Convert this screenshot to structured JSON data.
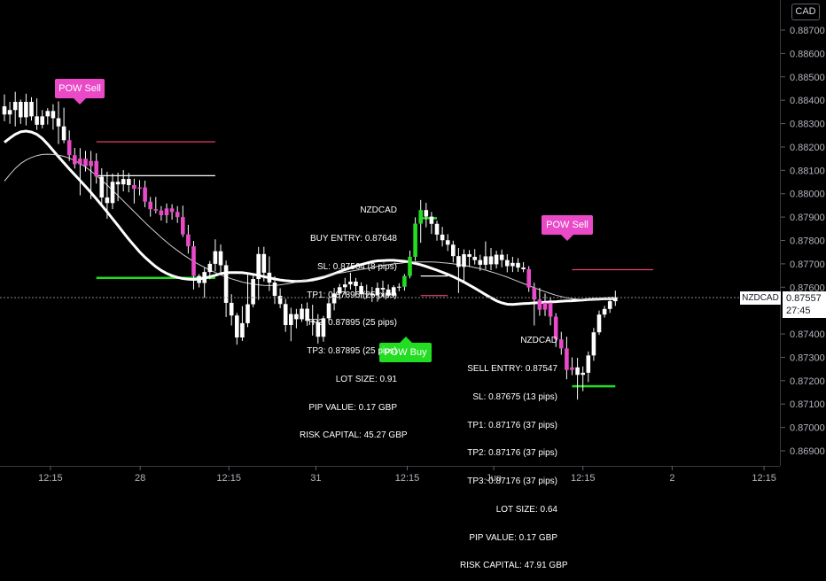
{
  "header": {
    "currency": "CAD"
  },
  "price_marker": {
    "symbol": "NZDCAD",
    "price": "0.87557",
    "countdown": "27:45",
    "color": "#ffffff"
  },
  "colors": {
    "bull": "#ffffff",
    "bear": "#ffffff",
    "signal_bar": "#ea49c7",
    "buy_signal": "#22dd22",
    "background": "#000000"
  },
  "signals": {
    "sell1": {
      "label": "POW Sell",
      "color": "#ea49c7"
    },
    "sell2": {
      "label": "POW Sell",
      "color": "#ea49c7"
    },
    "buy1": {
      "label": "POW Buy",
      "color": "#22dd22"
    }
  },
  "buy_info": {
    "lines": [
      "NZDCAD",
      "BUY ENTRY: 0.87648",
      "SL: 0.87564 (8 pips)",
      "TP1: 0.87895 (25 pips)",
      "TP2: 0.87895 (25 pips)",
      "TP3: 0.87895 (25 pips)",
      "LOT SIZE: 0.91",
      "PIP VALUE: 0.17 GBP",
      "RISK CAPITAL: 45.27 GBP"
    ]
  },
  "sell_info": {
    "lines": [
      "NZDCAD",
      "SELL ENTRY: 0.87547",
      "SL: 0.87675 (13 pips)",
      "TP1: 0.87176 (37 pips)",
      "TP2: 0.87176 (37 pips)",
      "TP3: 0.87176 (37 pips)",
      "LOT SIZE: 0.64",
      "PIP VALUE: 0.17 GBP",
      "RISK CAPITAL: 47.91 GBP"
    ]
  },
  "chart_data": {
    "type": "candlestick",
    "symbol": "NZDCAD",
    "ylim": [
      0.8685,
      0.8889
    ],
    "y_ticks": [
      "0.88700",
      "0.88600",
      "0.88500",
      "0.88400",
      "0.88300",
      "0.88200",
      "0.88100",
      "0.88000",
      "0.87900",
      "0.87800",
      "0.87700",
      "0.87600",
      "0.87400",
      "0.87300",
      "0.87200",
      "0.87100",
      "0.87000",
      "0.86900"
    ],
    "x_ticks": [
      "12:15",
      "28",
      "12:15",
      "31",
      "12:15",
      "Jun",
      "12:15",
      "2",
      "12:15"
    ],
    "candles": [
      {
        "o": 0.88374,
        "h": 0.88425,
        "l": 0.8831,
        "c": 0.88339
      },
      {
        "o": 0.88339,
        "h": 0.88393,
        "l": 0.88299,
        "c": 0.88358
      },
      {
        "o": 0.88358,
        "h": 0.88436,
        "l": 0.88288,
        "c": 0.88393
      },
      {
        "o": 0.88393,
        "h": 0.88403,
        "l": 0.88299,
        "c": 0.88327
      },
      {
        "o": 0.88327,
        "h": 0.88428,
        "l": 0.88292,
        "c": 0.88393
      },
      {
        "o": 0.88393,
        "h": 0.88413,
        "l": 0.88313,
        "c": 0.88331
      },
      {
        "o": 0.88331,
        "h": 0.88408,
        "l": 0.88273,
        "c": 0.88295
      },
      {
        "o": 0.88295,
        "h": 0.88358,
        "l": 0.8828,
        "c": 0.88331
      },
      {
        "o": 0.88331,
        "h": 0.88366,
        "l": 0.88296,
        "c": 0.88354
      },
      {
        "o": 0.88354,
        "h": 0.88383,
        "l": 0.88274,
        "c": 0.88323
      },
      {
        "o": 0.88323,
        "h": 0.88395,
        "l": 0.88212,
        "c": 0.88288
      },
      {
        "o": 0.88288,
        "h": 0.88368,
        "l": 0.88216,
        "c": 0.88229
      },
      {
        "o": 0.88229,
        "h": 0.88271,
        "l": 0.8814,
        "c": 0.88165
      },
      {
        "o": 0.88165,
        "h": 0.88196,
        "l": 0.88108,
        "c": 0.88126
      },
      {
        "o": 0.88126,
        "h": 0.88195,
        "l": 0.87993,
        "c": 0.8815
      },
      {
        "o": 0.8815,
        "h": 0.88183,
        "l": 0.88095,
        "c": 0.88118
      },
      {
        "o": 0.88118,
        "h": 0.88183,
        "l": 0.87977,
        "c": 0.8814
      },
      {
        "o": 0.8814,
        "h": 0.88173,
        "l": 0.88043,
        "c": 0.88073
      },
      {
        "o": 0.88073,
        "h": 0.88109,
        "l": 0.87954,
        "c": 0.87984
      },
      {
        "o": 0.87984,
        "h": 0.88094,
        "l": 0.87893,
        "c": 0.8796
      },
      {
        "o": 0.8796,
        "h": 0.88086,
        "l": 0.87934,
        "c": 0.88051
      },
      {
        "o": 0.88051,
        "h": 0.8809,
        "l": 0.87968,
        "c": 0.8804
      },
      {
        "o": 0.8804,
        "h": 0.88101,
        "l": 0.8801,
        "c": 0.88063
      },
      {
        "o": 0.88063,
        "h": 0.88089,
        "l": 0.88006,
        "c": 0.88037
      },
      {
        "o": 0.88037,
        "h": 0.88064,
        "l": 0.87958,
        "c": 0.88021
      },
      {
        "o": 0.88021,
        "h": 0.88058,
        "l": 0.87993,
        "c": 0.88027
      },
      {
        "o": 0.88027,
        "h": 0.88056,
        "l": 0.87942,
        "c": 0.87966
      },
      {
        "o": 0.87966,
        "h": 0.87986,
        "l": 0.87902,
        "c": 0.87934
      },
      {
        "o": 0.87934,
        "h": 0.87986,
        "l": 0.87916,
        "c": 0.87928
      },
      {
        "o": 0.87928,
        "h": 0.87947,
        "l": 0.87885,
        "c": 0.87908
      },
      {
        "o": 0.87908,
        "h": 0.87958,
        "l": 0.87874,
        "c": 0.87937
      },
      {
        "o": 0.87937,
        "h": 0.87955,
        "l": 0.87889,
        "c": 0.87922
      },
      {
        "o": 0.87922,
        "h": 0.87947,
        "l": 0.87875,
        "c": 0.879
      },
      {
        "o": 0.879,
        "h": 0.87949,
        "l": 0.87815,
        "c": 0.87826
      },
      {
        "o": 0.87826,
        "h": 0.87867,
        "l": 0.87744,
        "c": 0.87775
      },
      {
        "o": 0.87775,
        "h": 0.87798,
        "l": 0.8759,
        "c": 0.87648
      },
      {
        "o": 0.87648,
        "h": 0.87656,
        "l": 0.87599,
        "c": 0.87618
      },
      {
        "o": 0.87618,
        "h": 0.87684,
        "l": 0.87555,
        "c": 0.87665
      },
      {
        "o": 0.87665,
        "h": 0.87712,
        "l": 0.87634,
        "c": 0.877
      },
      {
        "o": 0.877,
        "h": 0.87805,
        "l": 0.87668,
        "c": 0.87754
      },
      {
        "o": 0.87754,
        "h": 0.87783,
        "l": 0.87661,
        "c": 0.87694
      },
      {
        "o": 0.87694,
        "h": 0.87714,
        "l": 0.87472,
        "c": 0.87533
      },
      {
        "o": 0.87533,
        "h": 0.8757,
        "l": 0.87436,
        "c": 0.87479
      },
      {
        "o": 0.87479,
        "h": 0.8749,
        "l": 0.87354,
        "c": 0.87385
      },
      {
        "o": 0.87385,
        "h": 0.87519,
        "l": 0.8737,
        "c": 0.87446
      },
      {
        "o": 0.87446,
        "h": 0.87656,
        "l": 0.87429,
        "c": 0.87527
      },
      {
        "o": 0.87527,
        "h": 0.87656,
        "l": 0.87514,
        "c": 0.87635
      },
      {
        "o": 0.87635,
        "h": 0.87772,
        "l": 0.87546,
        "c": 0.87742
      },
      {
        "o": 0.87742,
        "h": 0.87773,
        "l": 0.87624,
        "c": 0.87662
      },
      {
        "o": 0.87662,
        "h": 0.87732,
        "l": 0.87584,
        "c": 0.8762
      },
      {
        "o": 0.8762,
        "h": 0.87647,
        "l": 0.87528,
        "c": 0.87563
      },
      {
        "o": 0.87563,
        "h": 0.87595,
        "l": 0.8751,
        "c": 0.87528
      },
      {
        "o": 0.87528,
        "h": 0.8755,
        "l": 0.87409,
        "c": 0.87438
      },
      {
        "o": 0.87438,
        "h": 0.87512,
        "l": 0.87369,
        "c": 0.87485
      },
      {
        "o": 0.87485,
        "h": 0.87507,
        "l": 0.87424,
        "c": 0.87463
      },
      {
        "o": 0.87463,
        "h": 0.87529,
        "l": 0.87452,
        "c": 0.87508
      },
      {
        "o": 0.87508,
        "h": 0.87535,
        "l": 0.87435,
        "c": 0.87456
      },
      {
        "o": 0.87456,
        "h": 0.87525,
        "l": 0.87393,
        "c": 0.87451
      },
      {
        "o": 0.87451,
        "h": 0.87485,
        "l": 0.87359,
        "c": 0.87388
      },
      {
        "o": 0.87388,
        "h": 0.87477,
        "l": 0.87367,
        "c": 0.87467
      },
      {
        "o": 0.87467,
        "h": 0.87557,
        "l": 0.87455,
        "c": 0.87531
      },
      {
        "o": 0.87531,
        "h": 0.87597,
        "l": 0.87501,
        "c": 0.87573
      },
      {
        "o": 0.87573,
        "h": 0.87614,
        "l": 0.87548,
        "c": 0.876
      },
      {
        "o": 0.876,
        "h": 0.8764,
        "l": 0.87567,
        "c": 0.87612
      },
      {
        "o": 0.87612,
        "h": 0.87662,
        "l": 0.8759,
        "c": 0.87624
      },
      {
        "o": 0.87624,
        "h": 0.8764,
        "l": 0.87563,
        "c": 0.87605
      },
      {
        "o": 0.87605,
        "h": 0.87621,
        "l": 0.87553,
        "c": 0.8757
      },
      {
        "o": 0.8757,
        "h": 0.87611,
        "l": 0.87551,
        "c": 0.87573
      },
      {
        "o": 0.87573,
        "h": 0.87601,
        "l": 0.87537,
        "c": 0.87565
      },
      {
        "o": 0.87565,
        "h": 0.8762,
        "l": 0.87538,
        "c": 0.87597
      },
      {
        "o": 0.87597,
        "h": 0.87628,
        "l": 0.8756,
        "c": 0.8759
      },
      {
        "o": 0.8759,
        "h": 0.87612,
        "l": 0.87554,
        "c": 0.87564
      },
      {
        "o": 0.87564,
        "h": 0.87608,
        "l": 0.87558,
        "c": 0.876
      },
      {
        "o": 0.876,
        "h": 0.87617,
        "l": 0.87583,
        "c": 0.87602
      },
      {
        "o": 0.87602,
        "h": 0.87656,
        "l": 0.87585,
        "c": 0.87648
      },
      {
        "o": 0.87648,
        "h": 0.87757,
        "l": 0.87638,
        "c": 0.8773
      },
      {
        "o": 0.8773,
        "h": 0.87899,
        "l": 0.87712,
        "c": 0.87872
      },
      {
        "o": 0.87872,
        "h": 0.87973,
        "l": 0.8779,
        "c": 0.8793
      },
      {
        "o": 0.8793,
        "h": 0.87961,
        "l": 0.87856,
        "c": 0.87902
      },
      {
        "o": 0.87902,
        "h": 0.87922,
        "l": 0.87828,
        "c": 0.87871
      },
      {
        "o": 0.87871,
        "h": 0.87885,
        "l": 0.87799,
        "c": 0.87825
      },
      {
        "o": 0.87825,
        "h": 0.87858,
        "l": 0.87774,
        "c": 0.87801
      },
      {
        "o": 0.87801,
        "h": 0.87827,
        "l": 0.87755,
        "c": 0.87782
      },
      {
        "o": 0.87782,
        "h": 0.87799,
        "l": 0.87706,
        "c": 0.87733
      },
      {
        "o": 0.87733,
        "h": 0.87768,
        "l": 0.87575,
        "c": 0.87687
      },
      {
        "o": 0.87687,
        "h": 0.87762,
        "l": 0.87626,
        "c": 0.87741
      },
      {
        "o": 0.87741,
        "h": 0.87759,
        "l": 0.87687,
        "c": 0.8773
      },
      {
        "o": 0.8773,
        "h": 0.87763,
        "l": 0.87697,
        "c": 0.87716
      },
      {
        "o": 0.87716,
        "h": 0.87739,
        "l": 0.8767,
        "c": 0.87696
      },
      {
        "o": 0.87696,
        "h": 0.87796,
        "l": 0.87676,
        "c": 0.87732
      },
      {
        "o": 0.87732,
        "h": 0.87768,
        "l": 0.87673,
        "c": 0.87698
      },
      {
        "o": 0.87698,
        "h": 0.87756,
        "l": 0.8768,
        "c": 0.87739
      },
      {
        "o": 0.87739,
        "h": 0.87761,
        "l": 0.87685,
        "c": 0.87716
      },
      {
        "o": 0.87716,
        "h": 0.87741,
        "l": 0.87664,
        "c": 0.8769
      },
      {
        "o": 0.8769,
        "h": 0.8773,
        "l": 0.87665,
        "c": 0.87704
      },
      {
        "o": 0.87704,
        "h": 0.87724,
        "l": 0.87666,
        "c": 0.87684
      },
      {
        "o": 0.87684,
        "h": 0.87707,
        "l": 0.87664,
        "c": 0.87677
      },
      {
        "o": 0.87677,
        "h": 0.8769,
        "l": 0.8758,
        "c": 0.87599
      },
      {
        "o": 0.87599,
        "h": 0.87619,
        "l": 0.87436,
        "c": 0.87547
      },
      {
        "o": 0.87547,
        "h": 0.87597,
        "l": 0.87478,
        "c": 0.87504
      },
      {
        "o": 0.87504,
        "h": 0.87573,
        "l": 0.87477,
        "c": 0.87534
      },
      {
        "o": 0.87534,
        "h": 0.87558,
        "l": 0.87437,
        "c": 0.87474
      },
      {
        "o": 0.87474,
        "h": 0.87489,
        "l": 0.87344,
        "c": 0.87377
      },
      {
        "o": 0.87377,
        "h": 0.87409,
        "l": 0.87311,
        "c": 0.87338
      },
      {
        "o": 0.87338,
        "h": 0.87388,
        "l": 0.87206,
        "c": 0.87246
      },
      {
        "o": 0.87246,
        "h": 0.873,
        "l": 0.87224,
        "c": 0.87257
      },
      {
        "o": 0.87257,
        "h": 0.87298,
        "l": 0.87119,
        "c": 0.87225
      },
      {
        "o": 0.87225,
        "h": 0.87261,
        "l": 0.87155,
        "c": 0.87234
      },
      {
        "o": 0.87234,
        "h": 0.87325,
        "l": 0.87194,
        "c": 0.87308
      },
      {
        "o": 0.87308,
        "h": 0.87426,
        "l": 0.87285,
        "c": 0.87407
      },
      {
        "o": 0.87407,
        "h": 0.875,
        "l": 0.87396,
        "c": 0.87483
      },
      {
        "o": 0.87483,
        "h": 0.8752,
        "l": 0.8747,
        "c": 0.87507
      },
      {
        "o": 0.87507,
        "h": 0.8755,
        "l": 0.8749,
        "c": 0.8754
      },
      {
        "o": 0.8754,
        "h": 0.87585,
        "l": 0.8752,
        "c": 0.87557
      }
    ],
    "signal_bars": [
      12,
      13,
      14,
      15,
      16,
      17,
      24,
      25,
      26,
      27,
      28,
      29,
      30,
      31,
      32,
      33,
      34,
      35,
      97,
      98,
      99,
      100,
      101,
      102,
      103,
      104,
      105
    ],
    "buy_signal_bars": [
      74,
      75,
      76,
      77
    ],
    "ma_fast": [
      0.8822,
      0.88238,
      0.88254,
      0.88265,
      0.88268,
      0.88264,
      0.88254,
      0.88236,
      0.88212,
      0.88185,
      0.88158,
      0.88132,
      0.88106,
      0.88081,
      0.88056,
      0.88031,
      0.88005,
      0.87978,
      0.8795,
      0.87922,
      0.87893,
      0.87864,
      0.87834,
      0.87805,
      0.87778,
      0.87751,
      0.87728,
      0.87707,
      0.87688,
      0.87672,
      0.87659,
      0.87649,
      0.87642,
      0.87637,
      0.87634,
      0.87633,
      0.87635,
      0.87639,
      0.87645,
      0.87651,
      0.87658,
      0.87662,
      0.87663,
      0.87663,
      0.87662,
      0.87659,
      0.87655,
      0.87651,
      0.87645,
      0.8764,
      0.87635,
      0.87631,
      0.87628,
      0.87626,
      0.87625,
      0.87626,
      0.87628,
      0.87631,
      0.87636,
      0.87642,
      0.8765,
      0.87658,
      0.87667,
      0.87675,
      0.87683,
      0.87691,
      0.87697,
      0.87703,
      0.87709,
      0.87713,
      0.87714,
      0.87715,
      0.87715,
      0.87713,
      0.87711,
      0.87707,
      0.87702,
      0.87696,
      0.87689,
      0.87681,
      0.87673,
      0.87664,
      0.87655,
      0.87645,
      0.87634,
      0.87622,
      0.87609,
      0.87596,
      0.87582,
      0.87568,
      0.87555,
      0.87542,
      0.87533,
      0.87527,
      0.87526,
      0.87528,
      0.8753,
      0.87531,
      0.87533,
      0.87534,
      0.87536,
      0.87537,
      0.87538,
      0.8754,
      0.87541,
      0.87542,
      0.87544,
      0.87545,
      0.87547,
      0.87548,
      0.87549,
      0.87551,
      0.87552,
      0.87553
    ],
    "ma_slow": [
      0.88054,
      0.88082,
      0.88108,
      0.88129,
      0.88144,
      0.88155,
      0.88163,
      0.88168,
      0.88169,
      0.88168,
      0.88165,
      0.8816,
      0.88152,
      0.88142,
      0.88129,
      0.88114,
      0.88097,
      0.88078,
      0.88058,
      0.88037,
      0.88015,
      0.87992,
      0.87969,
      0.87946,
      0.87923,
      0.879,
      0.87877,
      0.87855,
      0.87834,
      0.87813,
      0.87793,
      0.87774,
      0.87757,
      0.8774,
      0.87725,
      0.8771,
      0.87697,
      0.87685,
      0.87673,
      0.87663,
      0.87653,
      0.87644,
      0.87636,
      0.87629,
      0.87622,
      0.87617,
      0.87613,
      0.8761,
      0.87608,
      0.87607,
      0.87608,
      0.8761,
      0.87613,
      0.87617,
      0.87622,
      0.87627,
      0.87632,
      0.87637,
      0.87642,
      0.87647,
      0.87652,
      0.87656,
      0.8766,
      0.87664,
      0.87668,
      0.87672,
      0.87676,
      0.8768,
      0.87684,
      0.87689,
      0.87693,
      0.87696,
      0.877,
      0.87702,
      0.87705,
      0.87707,
      0.87708,
      0.87708,
      0.87708,
      0.87708,
      0.87707,
      0.87705,
      0.87703,
      0.877,
      0.87697,
      0.87693,
      0.87689,
      0.87684,
      0.87679,
      0.87673,
      0.87666,
      0.87659,
      0.87651,
      0.87643,
      0.87634,
      0.87625,
      0.87616,
      0.87607,
      0.87598,
      0.87589,
      0.87581,
      0.87573,
      0.87566,
      0.8756,
      0.87555,
      0.87551,
      0.87549,
      0.87547,
      0.87547,
      0.87547,
      0.87548,
      0.87549,
      0.8755,
      0.87551
    ],
    "levels": [
      {
        "name": "sell1 SL",
        "y": 0.88222,
        "from": 17,
        "to": 39,
        "color": "#e0426b"
      },
      {
        "name": "sell1 entry",
        "y": 0.88077,
        "from": 17,
        "to": 39,
        "color": "#ffffff"
      },
      {
        "name": "sell1 TP",
        "y": 0.8764,
        "from": 17,
        "to": 39,
        "color": "#22dd22"
      },
      {
        "name": "buy1 SL",
        "y": 0.87564,
        "from": 77,
        "to": 82,
        "color": "#e0426b"
      },
      {
        "name": "buy1 entry",
        "y": 0.87648,
        "from": 77,
        "to": 82,
        "color": "#ffffff"
      },
      {
        "name": "buy1 TP",
        "y": 0.87895,
        "from": 77,
        "to": 80,
        "color": "#22dd22"
      },
      {
        "name": "sell2 SL",
        "y": 0.87675,
        "from": 105,
        "to": 120,
        "color": "#e0426b"
      },
      {
        "name": "sell2 entry",
        "y": 0.87547,
        "from": 105,
        "to": 113,
        "color": "#ffffff"
      },
      {
        "name": "sell2 TP",
        "y": 0.87176,
        "from": 105,
        "to": 113,
        "color": "#22dd22"
      }
    ]
  }
}
